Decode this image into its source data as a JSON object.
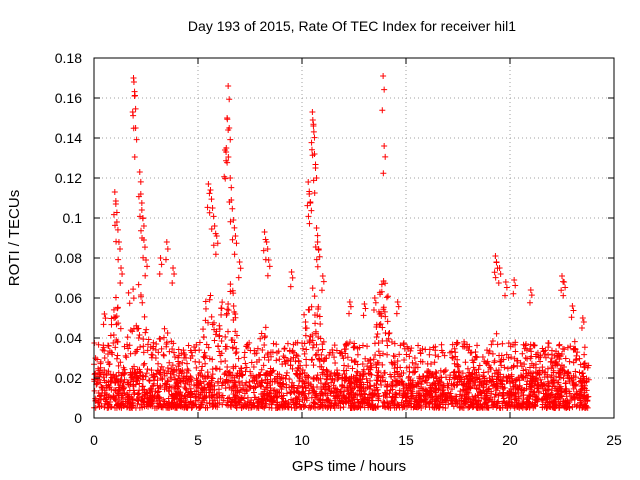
{
  "chart_data": {
    "type": "scatter",
    "title": "Day 193 of 2015, Rate Of TEC Index for receiver hil1",
    "xlabel": "GPS time / hours",
    "ylabel": "ROTI / TECUs",
    "xlim": [
      0,
      25
    ],
    "ylim": [
      0,
      0.18
    ],
    "xticks": [
      0,
      5,
      10,
      15,
      20,
      25
    ],
    "yticks": [
      0,
      0.02,
      0.04,
      0.06,
      0.08,
      0.1,
      0.12,
      0.14,
      0.16,
      0.18
    ],
    "xtick_labels": [
      "0",
      "5",
      "10",
      "15",
      "20",
      "25"
    ],
    "ytick_labels": [
      "0",
      "0.02",
      "0.04",
      "0.06",
      "0.08",
      "0.1",
      "0.12",
      "0.14",
      "0.16",
      "0.18"
    ],
    "grid": true,
    "marker": "+",
    "color": "#ff0000",
    "data_extent_hours": [
      0,
      23.8
    ],
    "background_band": [
      0.005,
      0.045
    ],
    "series": [
      {
        "name": "hil1",
        "note": "dense background cloud plus representative outliers",
        "peaks": [
          {
            "x": 0.5,
            "y": 0.052
          },
          {
            "x": 1.0,
            "y": 0.113
          },
          {
            "x": 1.05,
            "y": 0.107
          },
          {
            "x": 1.1,
            "y": 0.098
          },
          {
            "x": 1.2,
            "y": 0.088
          },
          {
            "x": 1.3,
            "y": 0.075
          },
          {
            "x": 1.9,
            "y": 0.17
          },
          {
            "x": 1.92,
            "y": 0.168
          },
          {
            "x": 1.95,
            "y": 0.161
          },
          {
            "x": 2.0,
            "y": 0.145
          },
          {
            "x": 2.2,
            "y": 0.123
          },
          {
            "x": 2.25,
            "y": 0.112
          },
          {
            "x": 2.3,
            "y": 0.104
          },
          {
            "x": 2.35,
            "y": 0.1
          },
          {
            "x": 2.4,
            "y": 0.089
          },
          {
            "x": 2.5,
            "y": 0.079
          },
          {
            "x": 3.2,
            "y": 0.08
          },
          {
            "x": 3.5,
            "y": 0.088
          },
          {
            "x": 3.8,
            "y": 0.075
          },
          {
            "x": 5.5,
            "y": 0.117
          },
          {
            "x": 5.6,
            "y": 0.114
          },
          {
            "x": 5.7,
            "y": 0.105
          },
          {
            "x": 5.8,
            "y": 0.096
          },
          {
            "x": 5.9,
            "y": 0.091
          },
          {
            "x": 6.3,
            "y": 0.134
          },
          {
            "x": 6.35,
            "y": 0.133
          },
          {
            "x": 6.4,
            "y": 0.15
          },
          {
            "x": 6.45,
            "y": 0.166
          },
          {
            "x": 6.5,
            "y": 0.145
          },
          {
            "x": 6.55,
            "y": 0.12
          },
          {
            "x": 6.6,
            "y": 0.109
          },
          {
            "x": 6.7,
            "y": 0.099
          },
          {
            "x": 6.8,
            "y": 0.091
          },
          {
            "x": 7.0,
            "y": 0.078
          },
          {
            "x": 8.2,
            "y": 0.093
          },
          {
            "x": 8.3,
            "y": 0.088
          },
          {
            "x": 8.4,
            "y": 0.079
          },
          {
            "x": 9.5,
            "y": 0.073
          },
          {
            "x": 10.3,
            "y": 0.118
          },
          {
            "x": 10.35,
            "y": 0.112
          },
          {
            "x": 10.4,
            "y": 0.108
          },
          {
            "x": 10.5,
            "y": 0.153
          },
          {
            "x": 10.52,
            "y": 0.149
          },
          {
            "x": 10.55,
            "y": 0.146
          },
          {
            "x": 10.6,
            "y": 0.132
          },
          {
            "x": 10.65,
            "y": 0.125
          },
          {
            "x": 10.7,
            "y": 0.095
          },
          {
            "x": 10.75,
            "y": 0.088
          },
          {
            "x": 10.8,
            "y": 0.084
          },
          {
            "x": 11.0,
            "y": 0.071
          },
          {
            "x": 12.3,
            "y": 0.058
          },
          {
            "x": 13.0,
            "y": 0.057
          },
          {
            "x": 13.5,
            "y": 0.06
          },
          {
            "x": 13.9,
            "y": 0.171
          },
          {
            "x": 13.95,
            "y": 0.136
          },
          {
            "x": 14.6,
            "y": 0.058
          },
          {
            "x": 19.3,
            "y": 0.081
          },
          {
            "x": 19.35,
            "y": 0.078
          },
          {
            "x": 19.5,
            "y": 0.075
          },
          {
            "x": 19.8,
            "y": 0.068
          },
          {
            "x": 20.2,
            "y": 0.069
          },
          {
            "x": 21.0,
            "y": 0.064
          },
          {
            "x": 22.5,
            "y": 0.071
          },
          {
            "x": 22.6,
            "y": 0.068
          },
          {
            "x": 23.0,
            "y": 0.056
          },
          {
            "x": 23.5,
            "y": 0.05
          }
        ]
      }
    ]
  }
}
